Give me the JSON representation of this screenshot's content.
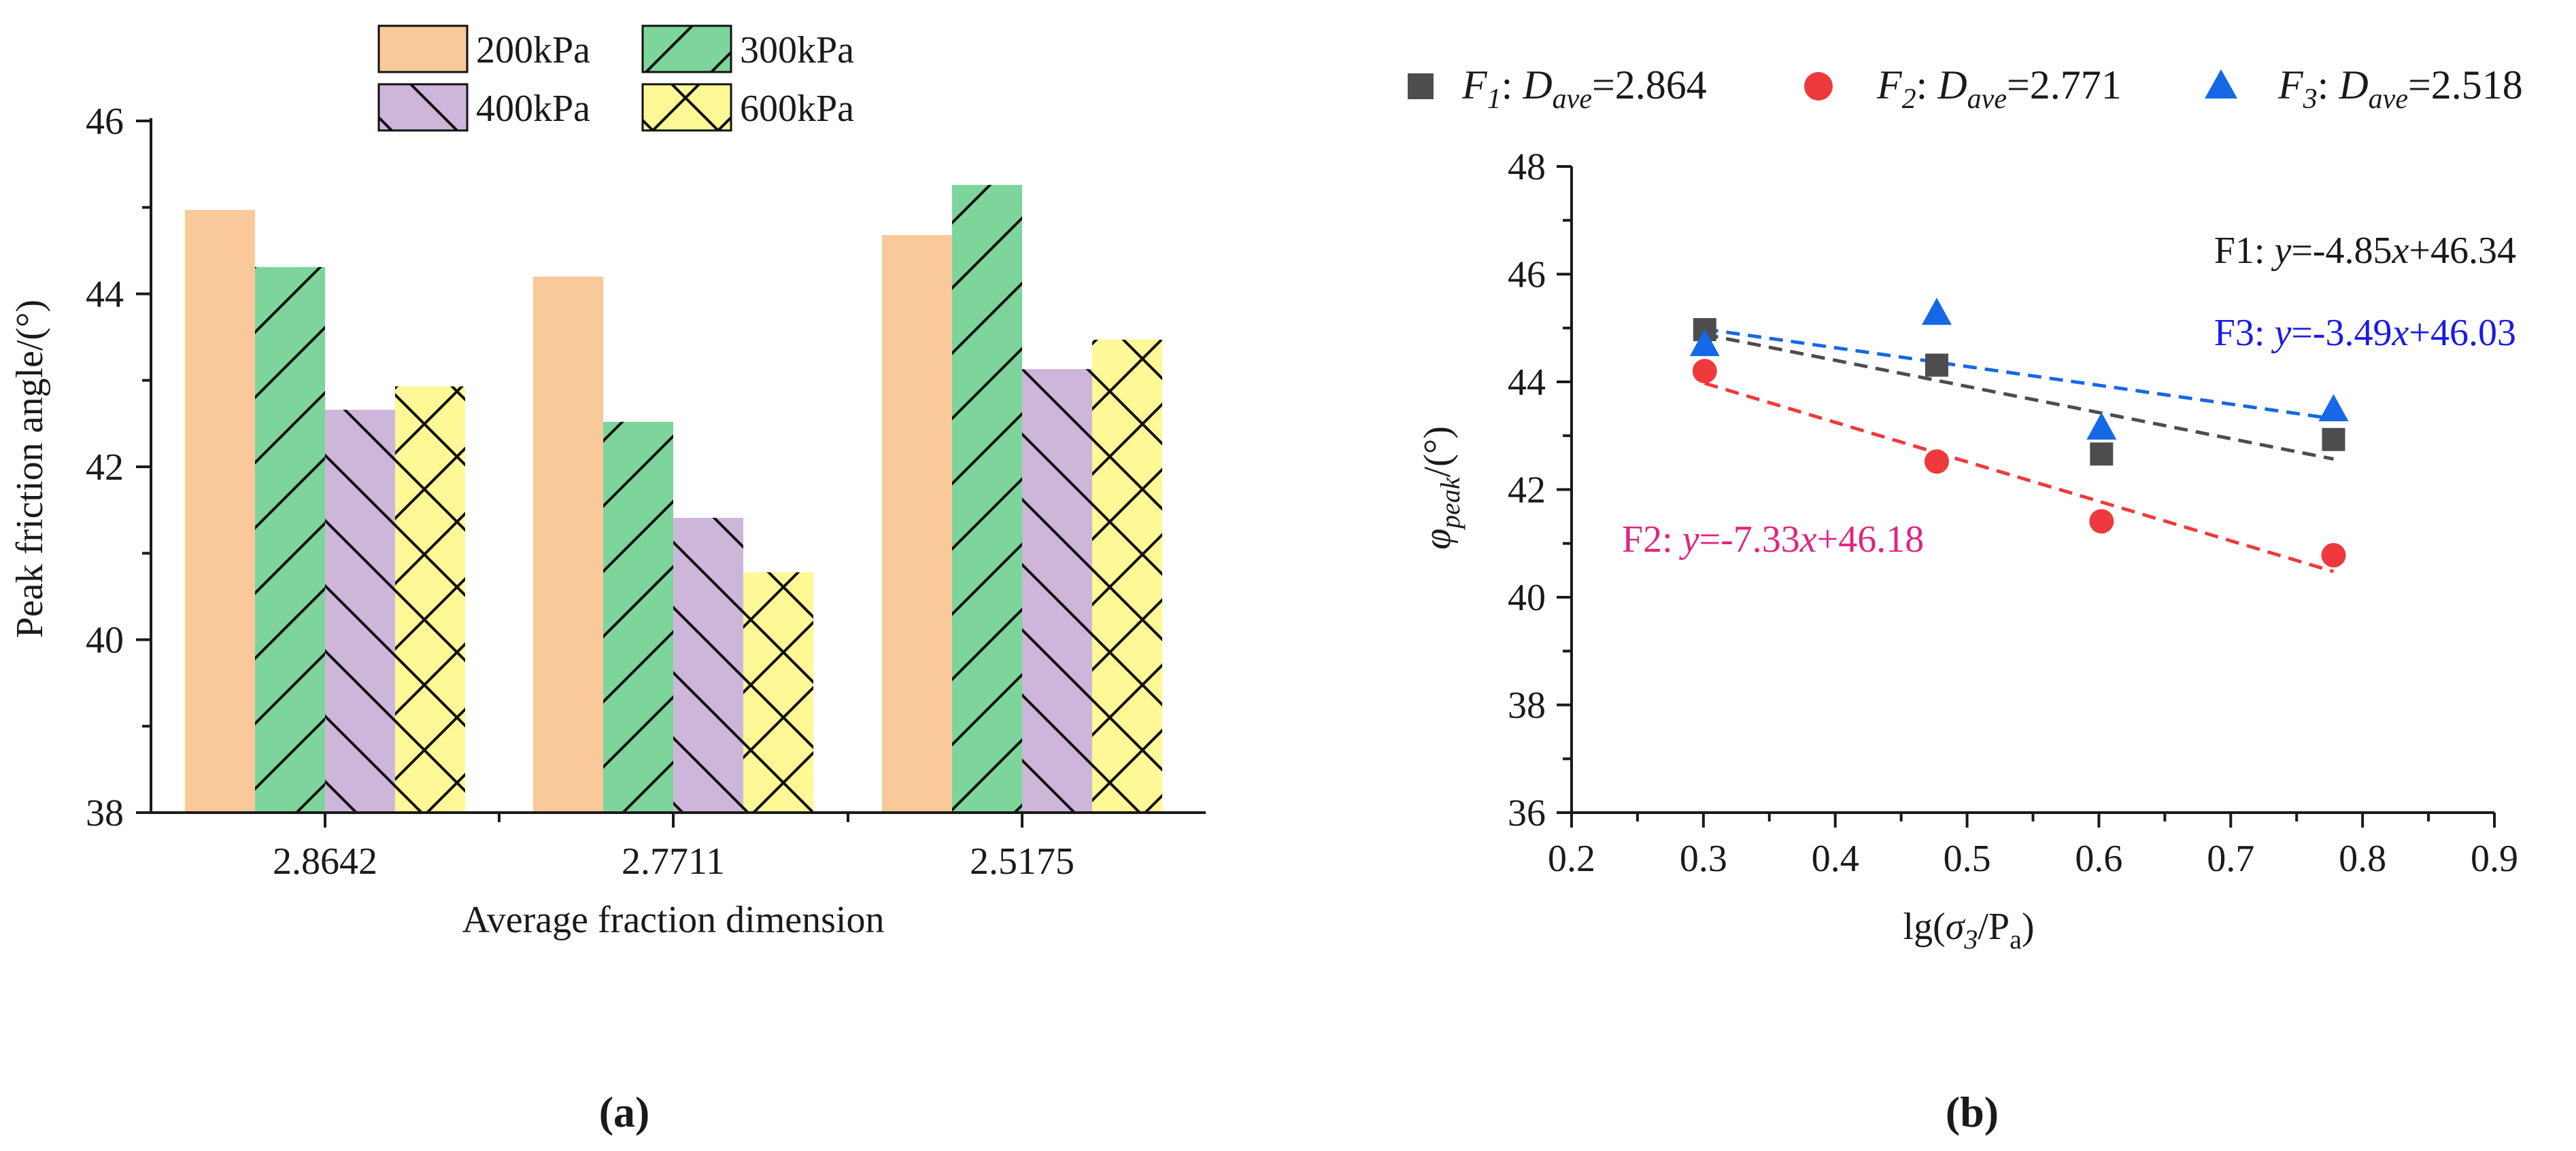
{
  "colors": {
    "bar_200": "#F9C99A",
    "bar_300": "#7DD59B",
    "bar_400": "#CDB6DA",
    "bar_600": "#FFF896",
    "f1": "#4D4D4D",
    "f2": "#EE3A3D",
    "f3": "#1668E6",
    "f2_eq": "#E02480",
    "f3_eq": "#1A1AE6",
    "axis": "#1a1a1a"
  },
  "chart_data": [
    {
      "type": "bar",
      "panel_label": "(a)",
      "title": "",
      "xlabel": "Average fraction dimension",
      "ylabel": "Peak friction angle/(°)",
      "ylim": [
        38,
        46
      ],
      "yticks": [
        "38",
        "40",
        "42",
        "44",
        "46"
      ],
      "categories": [
        "2.8642",
        "2.7711",
        "2.5175"
      ],
      "series": [
        {
          "name": "200kPa",
          "values": [
            44.97,
            44.2,
            44.68
          ],
          "color": "#F9C99A",
          "hatch": "none"
        },
        {
          "name": "300kPa",
          "values": [
            44.31,
            42.52,
            45.26
          ],
          "color": "#7DD59B",
          "hatch": "forward"
        },
        {
          "name": "400kPa",
          "values": [
            42.66,
            41.41,
            43.13
          ],
          "color": "#CDB6DA",
          "hatch": "back"
        },
        {
          "name": "600kPa",
          "values": [
            42.93,
            40.78,
            43.47
          ],
          "color": "#FFF896",
          "hatch": "cross"
        }
      ],
      "legend": "top-center, 2 columns"
    },
    {
      "type": "scatter",
      "panel_label": "(b)",
      "title": "",
      "xlabel": {
        "prefix": "lg(",
        "sigma": "σ",
        "sub": "3",
        "mid": "/P",
        "sub2": "a",
        "suffix": ")"
      },
      "ylabel": {
        "phi": "φ",
        "sub": "peak",
        "unit": "/(°)"
      },
      "xlim": [
        0.2,
        0.9
      ],
      "ylim": [
        36,
        48
      ],
      "xticks": [
        "0.2",
        "0.3",
        "0.4",
        "0.5",
        "0.6",
        "0.7",
        "0.8",
        "0.9"
      ],
      "yticks": [
        "36",
        "38",
        "40",
        "42",
        "44",
        "46",
        "48"
      ],
      "series": [
        {
          "name": "F1",
          "legend_F": "F",
          "legend_sub": "1",
          "legend_D": "D",
          "legend_Dsub": "ave",
          "legend_value": "=2.864",
          "marker": "square",
          "color": "#4D4D4D",
          "x": [
            0.301,
            0.477,
            0.602,
            0.778
          ],
          "y": [
            44.97,
            44.31,
            42.66,
            42.93
          ],
          "fit": {
            "slope": -4.85,
            "intercept": 46.34,
            "label_name": "F1: ",
            "label_y": "y",
            "label_mid": "=-4.85",
            "label_x": "x",
            "label_end": "+46.34",
            "label_color": "#1a1a1a"
          }
        },
        {
          "name": "F2",
          "legend_F": "F",
          "legend_sub": "2",
          "legend_D": "D",
          "legend_Dsub": "ave",
          "legend_value": "=2.771",
          "marker": "circle",
          "color": "#EE3A3D",
          "x": [
            0.301,
            0.477,
            0.602,
            0.778
          ],
          "y": [
            44.2,
            42.52,
            41.41,
            40.78
          ],
          "fit": {
            "slope": -7.33,
            "intercept": 46.18,
            "label_name": "F2: ",
            "label_y": "y",
            "label_mid": "=-7.33",
            "label_x": "x",
            "label_end": "+46.18",
            "label_color": "#E02480"
          }
        },
        {
          "name": "F3",
          "legend_F": "F",
          "legend_sub": "3",
          "legend_D": "D",
          "legend_Dsub": "ave",
          "legend_value": "=2.518",
          "marker": "triangle",
          "color": "#1668E6",
          "x": [
            0.301,
            0.477,
            0.602,
            0.778
          ],
          "y": [
            44.68,
            45.26,
            43.13,
            43.47
          ],
          "fit": {
            "slope": -3.49,
            "intercept": 46.03,
            "label_name": "F3: ",
            "label_y": "y",
            "label_mid": "=-3.49",
            "label_x": "x",
            "label_end": "+46.03",
            "label_color": "#1A1AE6"
          }
        }
      ],
      "legend": "top, 3 columns"
    }
  ]
}
